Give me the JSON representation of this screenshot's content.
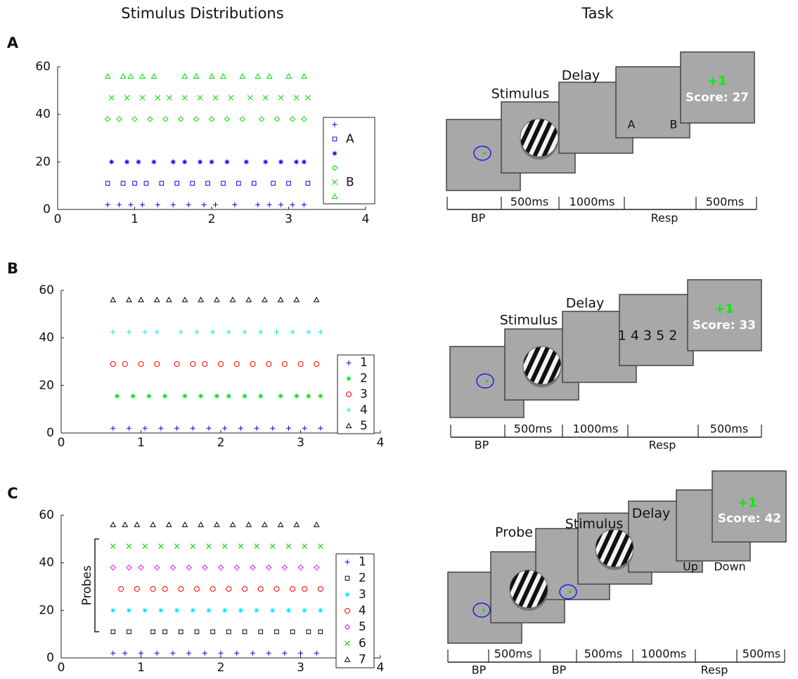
{
  "headers": {
    "left": "Stimulus Distributions",
    "right": "Task"
  },
  "panel_labels": [
    "A",
    "B",
    "C"
  ],
  "chart_data": [
    {
      "type": "scatter",
      "xlim": [
        0,
        4
      ],
      "xticks": [
        0,
        1,
        2,
        3,
        4
      ],
      "ylim": [
        0,
        60
      ],
      "yticks": [
        0,
        20,
        40,
        60
      ],
      "series": [
        {
          "name": null,
          "color": "#0000ff",
          "marker": "+",
          "x": [
            0.65,
            0.8,
            0.95,
            1.1,
            1.3,
            1.5,
            1.7,
            1.9,
            2.05,
            2.3,
            2.6,
            2.75,
            2.9,
            3.05,
            3.2
          ],
          "values": [
            2,
            2,
            2,
            2,
            2,
            2,
            2,
            2,
            2,
            2,
            2,
            2,
            2,
            2,
            2
          ]
        },
        {
          "name": "A",
          "color": "#0000ff",
          "marker": "s",
          "x": [
            0.65,
            0.85,
            1.0,
            1.15,
            1.35,
            1.55,
            1.75,
            1.95,
            2.15,
            2.35,
            2.55,
            2.8,
            3.0,
            3.25
          ],
          "values": [
            11,
            11,
            11,
            11,
            11,
            11,
            11,
            11,
            11,
            11,
            11,
            11,
            11,
            11
          ]
        },
        {
          "name": null,
          "color": "#0000ff",
          "marker": "*",
          "x": [
            0.7,
            0.9,
            1.05,
            1.25,
            1.5,
            1.65,
            1.85,
            2.0,
            2.2,
            2.45,
            2.7,
            2.9,
            3.1,
            3.2
          ],
          "values": [
            20,
            20,
            20,
            20,
            20,
            20,
            20,
            20,
            20,
            20,
            20,
            20,
            20,
            20
          ]
        },
        {
          "name": null,
          "color": "#00dd00",
          "marker": "d",
          "x": [
            0.65,
            0.8,
            1.0,
            1.2,
            1.4,
            1.6,
            1.8,
            2.0,
            2.2,
            2.4,
            2.65,
            2.85,
            3.05,
            3.2
          ],
          "values": [
            38,
            38,
            38,
            38,
            38,
            38,
            38,
            38,
            38,
            38,
            38,
            38,
            38,
            38
          ]
        },
        {
          "name": "B",
          "color": "#00dd00",
          "marker": "x",
          "x": [
            0.7,
            0.9,
            1.1,
            1.3,
            1.45,
            1.65,
            1.85,
            2.05,
            2.25,
            2.5,
            2.7,
            2.9,
            3.1,
            3.25
          ],
          "values": [
            47,
            47,
            47,
            47,
            47,
            47,
            47,
            47,
            47,
            47,
            47,
            47,
            47,
            47
          ]
        },
        {
          "name": null,
          "color": "#00dd00",
          "marker": "^",
          "x": [
            0.65,
            0.85,
            0.95,
            1.1,
            1.25,
            1.65,
            1.8,
            2.0,
            2.15,
            2.4,
            2.6,
            2.75,
            3.0,
            3.2
          ],
          "values": [
            56,
            56,
            56,
            56,
            56,
            56,
            56,
            56,
            56,
            56,
            56,
            56,
            56,
            56
          ]
        }
      ]
    },
    {
      "type": "scatter",
      "xlim": [
        0,
        4
      ],
      "xticks": [
        0,
        1,
        2,
        3,
        4
      ],
      "ylim": [
        0,
        60
      ],
      "yticks": [
        0,
        20,
        40,
        60
      ],
      "series": [
        {
          "name": "1",
          "color": "#0000ff",
          "marker": "+",
          "x": [
            0.65,
            0.85,
            1.05,
            1.25,
            1.45,
            1.65,
            1.85,
            2.05,
            2.25,
            2.45,
            2.65,
            2.85,
            3.05,
            3.25
          ],
          "values": [
            2,
            2,
            2,
            2,
            2,
            2,
            2,
            2,
            2,
            2,
            2,
            2,
            2,
            2
          ]
        },
        {
          "name": "2",
          "color": "#00dd00",
          "marker": "*",
          "x": [
            0.7,
            0.9,
            1.1,
            1.3,
            1.55,
            1.75,
            1.95,
            2.1,
            2.3,
            2.5,
            2.75,
            2.95,
            3.1,
            3.25
          ],
          "values": [
            15.5,
            15.5,
            15.5,
            15.5,
            15.5,
            15.5,
            15.5,
            15.5,
            15.5,
            15.5,
            15.5,
            15.5,
            15.5,
            15.5
          ]
        },
        {
          "name": "3",
          "color": "#ff0000",
          "marker": "o",
          "x": [
            0.65,
            0.8,
            1.0,
            1.2,
            1.45,
            1.65,
            1.8,
            2.0,
            2.2,
            2.4,
            2.6,
            2.8,
            3.0,
            3.2
          ],
          "values": [
            29,
            29,
            29,
            29,
            29,
            29,
            29,
            29,
            29,
            29,
            29,
            29,
            29,
            29
          ]
        },
        {
          "name": "4",
          "color": "#00e5ee",
          "marker": "+",
          "x": [
            0.65,
            0.85,
            1.05,
            1.2,
            1.5,
            1.7,
            1.9,
            2.1,
            2.3,
            2.5,
            2.7,
            2.9,
            3.1,
            3.25
          ],
          "values": [
            42.5,
            42.5,
            42.5,
            42.5,
            42.5,
            42.5,
            42.5,
            42.5,
            42.5,
            42.5,
            42.5,
            42.5,
            42.5,
            42.5
          ]
        },
        {
          "name": "5",
          "color": "#000000",
          "marker": "^",
          "x": [
            0.65,
            0.85,
            1.0,
            1.2,
            1.35,
            1.55,
            1.75,
            1.95,
            2.15,
            2.35,
            2.55,
            2.75,
            2.95,
            3.2
          ],
          "values": [
            56,
            56,
            56,
            56,
            56,
            56,
            56,
            56,
            56,
            56,
            56,
            56,
            56,
            56
          ]
        }
      ]
    },
    {
      "type": "scatter",
      "xlim": [
        0,
        4
      ],
      "xticks": [
        0,
        1,
        2,
        3,
        4
      ],
      "ylim": [
        0,
        60
      ],
      "yticks": [
        0,
        20,
        40,
        60
      ],
      "annotation": "Probes",
      "series": [
        {
          "name": "1",
          "color": "#0000ff",
          "marker": "+",
          "x": [
            0.65,
            0.8,
            1.0,
            1.2,
            1.4,
            1.6,
            1.8,
            2.0,
            2.2,
            2.4,
            2.6,
            2.8,
            3.0,
            3.2
          ],
          "values": [
            2,
            2,
            2,
            2,
            2,
            2,
            2,
            2,
            2,
            2,
            2,
            2,
            2,
            2
          ]
        },
        {
          "name": "2",
          "color": "#000000",
          "marker": "s",
          "x": [
            0.65,
            0.85,
            1.15,
            1.3,
            1.5,
            1.7,
            1.9,
            2.1,
            2.3,
            2.5,
            2.7,
            2.9,
            3.1,
            3.25
          ],
          "values": [
            11,
            11,
            11,
            11,
            11,
            11,
            11,
            11,
            11,
            11,
            11,
            11,
            11,
            11
          ]
        },
        {
          "name": "3",
          "color": "#00e5ee",
          "marker": "*",
          "x": [
            0.65,
            0.85,
            1.05,
            1.25,
            1.45,
            1.65,
            1.85,
            2.05,
            2.25,
            2.45,
            2.65,
            2.85,
            3.05,
            3.25
          ],
          "values": [
            20,
            20,
            20,
            20,
            20,
            20,
            20,
            20,
            20,
            20,
            20,
            20,
            20,
            20
          ]
        },
        {
          "name": "4",
          "color": "#ff0000",
          "marker": "o",
          "x": [
            0.75,
            0.95,
            1.15,
            1.3,
            1.5,
            1.7,
            1.9,
            2.1,
            2.3,
            2.5,
            2.7,
            2.9,
            3.05,
            3.25
          ],
          "values": [
            29,
            29,
            29,
            29,
            29,
            29,
            29,
            29,
            29,
            29,
            29,
            29,
            29,
            29
          ]
        },
        {
          "name": "5",
          "color": "#ff00ff",
          "marker": "d",
          "x": [
            0.65,
            0.85,
            1.0,
            1.2,
            1.4,
            1.6,
            1.8,
            2.0,
            2.2,
            2.4,
            2.6,
            2.8,
            3.0,
            3.2
          ],
          "values": [
            38,
            38,
            38,
            38,
            38,
            38,
            38,
            38,
            38,
            38,
            38,
            38,
            38,
            38
          ]
        },
        {
          "name": "6",
          "color": "#00cc00",
          "marker": "x",
          "x": [
            0.65,
            0.85,
            1.05,
            1.25,
            1.45,
            1.65,
            1.85,
            2.05,
            2.25,
            2.45,
            2.65,
            2.85,
            3.05,
            3.25
          ],
          "values": [
            47,
            47,
            47,
            47,
            47,
            47,
            47,
            47,
            47,
            47,
            47,
            47,
            47,
            47
          ]
        },
        {
          "name": "7",
          "color": "#000000",
          "marker": "^",
          "x": [
            0.65,
            0.8,
            0.95,
            1.15,
            1.35,
            1.55,
            1.75,
            1.95,
            2.15,
            2.35,
            2.55,
            2.75,
            2.95,
            3.2
          ],
          "values": [
            56,
            56,
            56,
            56,
            56,
            56,
            56,
            56,
            56,
            56,
            56,
            56,
            56,
            56
          ]
        }
      ]
    }
  ],
  "tasks": [
    {
      "screen_labels": [
        "Stimulus",
        "Delay"
      ],
      "choices": [
        "A",
        "B"
      ],
      "feedback": "+1",
      "score": "Score: 27",
      "durations": [
        "500ms",
        "1000ms",
        "500ms"
      ],
      "phases": [
        "BP",
        "Resp"
      ]
    },
    {
      "screen_labels": [
        "Stimulus",
        "Delay"
      ],
      "choices": [
        "1 4 3 5 2"
      ],
      "feedback": "+1",
      "score": "Score: 33",
      "durations": [
        "500ms",
        "1000ms",
        "500ms"
      ],
      "phases": [
        "BP",
        "Resp"
      ]
    },
    {
      "screen_labels": [
        "Probe",
        "Stimulus",
        "Delay"
      ],
      "choices": [
        "Up",
        "Down"
      ],
      "feedback": "+1",
      "score": "Score: 42",
      "durations": [
        "500ms",
        "500ms",
        "1000ms",
        "500ms"
      ],
      "phases": [
        "BP",
        "BP",
        "Resp"
      ]
    }
  ]
}
